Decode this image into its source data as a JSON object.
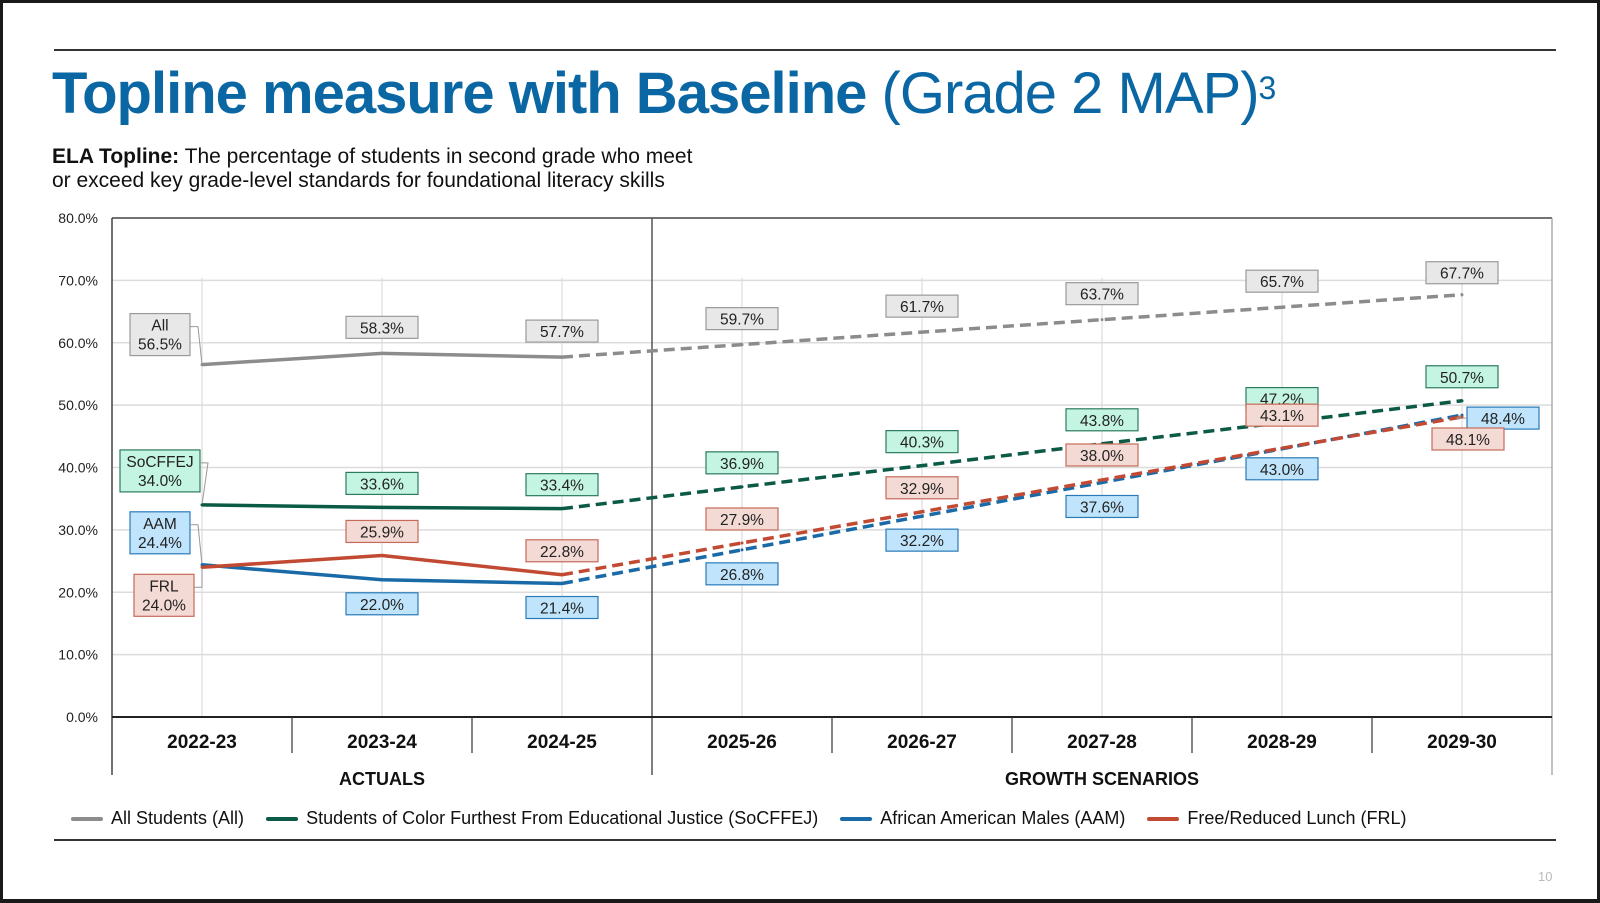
{
  "slide": {
    "title_bold": "Topline measure with Baseline",
    "title_light": "(Grade 2 MAP)",
    "title_superscript": "3",
    "subtitle_bold": "ELA Topline:",
    "subtitle_line1": "The percentage of students in second grade who meet",
    "subtitle_line2": "or exceed key grade-level standards for foundational literacy skills",
    "page_number": "10"
  },
  "chart_data": {
    "type": "line",
    "title": "Topline measure with Baseline (Grade 2 MAP)",
    "xlabel": "",
    "ylabel": "",
    "ylim": [
      0,
      80
    ],
    "yticks": [
      "0.0%",
      "10.0%",
      "20.0%",
      "30.0%",
      "40.0%",
      "50.0%",
      "60.0%",
      "70.0%",
      "80.0%"
    ],
    "grid": true,
    "categories": [
      "2022-23",
      "2023-24",
      "2024-25",
      "2025-26",
      "2026-27",
      "2027-28",
      "2028-29",
      "2029-30"
    ],
    "groups": [
      {
        "label": "ACTUALS",
        "count": 3
      },
      {
        "label": "GROWTH SCENARIOS",
        "count": 5
      }
    ],
    "actual_count": 3,
    "legend_position": "bottom",
    "series": [
      {
        "name": "All Students (All)",
        "short": "All",
        "color": "#8c8c8c",
        "label_bg": "#e8e8e8",
        "label_border": "#9a9a9a",
        "values": [
          56.5,
          58.3,
          57.7,
          59.7,
          61.7,
          63.7,
          65.7,
          67.7
        ],
        "labels": [
          "56.5%",
          "58.3%",
          "57.7%",
          "59.7%",
          "61.7%",
          "63.7%",
          "65.7%",
          "67.7%"
        ]
      },
      {
        "name": "Students of Color Furthest From Educational Justice (SoCFFEJ)",
        "short": "SoCFFEJ",
        "color": "#0b5a45",
        "label_bg": "#c4f5e3",
        "label_border": "#2d7a5e",
        "values": [
          34.0,
          33.6,
          33.4,
          36.9,
          40.3,
          43.8,
          47.2,
          50.7
        ],
        "labels": [
          "34.0%",
          "33.6%",
          "33.4%",
          "36.9%",
          "40.3%",
          "43.8%",
          "47.2%",
          "50.7%"
        ]
      },
      {
        "name": "African American Males (AAM)",
        "short": "AAM",
        "color": "#1a6aa8",
        "label_bg": "#bfe4fb",
        "label_border": "#2a7ab8",
        "values": [
          24.4,
          22.0,
          21.4,
          26.8,
          32.2,
          37.6,
          43.0,
          48.4
        ],
        "labels": [
          "24.4%",
          "22.0%",
          "21.4%",
          "26.8%",
          "32.2%",
          "37.6%",
          "43.0%",
          "48.4%"
        ]
      },
      {
        "name": "Free/Reduced Lunch (FRL)",
        "short": "FRL",
        "color": "#c24a33",
        "label_bg": "#f3dad4",
        "label_border": "#c66a5a",
        "values": [
          24.0,
          25.9,
          22.8,
          27.9,
          32.9,
          38.0,
          43.1,
          48.1
        ],
        "labels": [
          "24.0%",
          "25.9%",
          "22.8%",
          "27.9%",
          "32.9%",
          "38.0%",
          "43.1%",
          "48.1%"
        ]
      }
    ]
  }
}
